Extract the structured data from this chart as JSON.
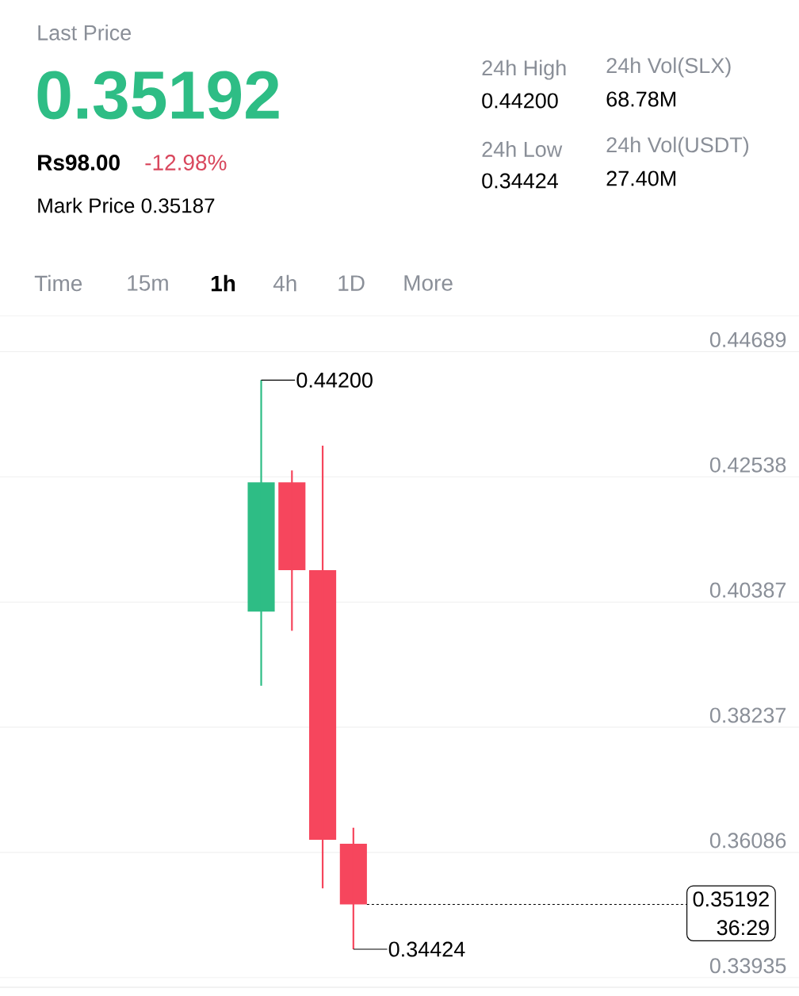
{
  "chart_data": {
    "type": "candlestick",
    "categories": [
      null,
      null,
      null,
      null,
      null,
      null,
      null,
      null,
      null,
      null,
      null,
      null,
      null,
      null,
      null,
      null,
      null,
      null,
      null,
      null,
      null,
      null,
      null,
      null,
      null,
      null
    ],
    "ohlc": [
      null,
      null,
      null,
      null,
      null,
      null,
      null,
      null,
      [
        0.40223,
        0.442,
        0.38949,
        0.42442
      ],
      [
        0.42442,
        0.42648,
        0.39894,
        0.40935
      ],
      [
        0.40935,
        0.43072,
        0.3547,
        0.36305
      ],
      [
        0.36237,
        0.36511,
        0.34424,
        0.35192
      ],
      null,
      null,
      null,
      null,
      null,
      null,
      null,
      null,
      null,
      null,
      null,
      null,
      null,
      null
    ],
    "colors": [
      null,
      null,
      null,
      null,
      null,
      null,
      null,
      null,
      "#2ebd85",
      "#f6465d",
      "#f6465d",
      "#f6465d",
      null,
      null,
      null,
      null,
      null,
      null,
      null,
      null,
      null,
      null,
      null,
      null,
      null,
      null
    ],
    "ylim": [
      0.3377,
      0.4528
    ],
    "yticks": [
      0.33935,
      0.36086,
      0.38237,
      0.40387,
      0.42538,
      0.44689
    ],
    "grid": "y",
    "ref_lines": [
      {
        "axis": "y",
        "value": 0.35192,
        "label": "0.35192",
        "line_style": "dashed"
      }
    ],
    "annotations": [
      "Last Price",
      "0.35192",
      "Rs98.00",
      "-12.98%",
      "Mark Price 0.35187",
      "24h High",
      "0.44200",
      "24h Vol(SLX)",
      "68.78M",
      "24h Low",
      "0.34424",
      "24h Vol(USDT)",
      "27.40M",
      "Time",
      "15m",
      "1h",
      "4h",
      "1D",
      "More",
      "0.44200",
      "0.34424",
      "36:29"
    ]
  }
}
